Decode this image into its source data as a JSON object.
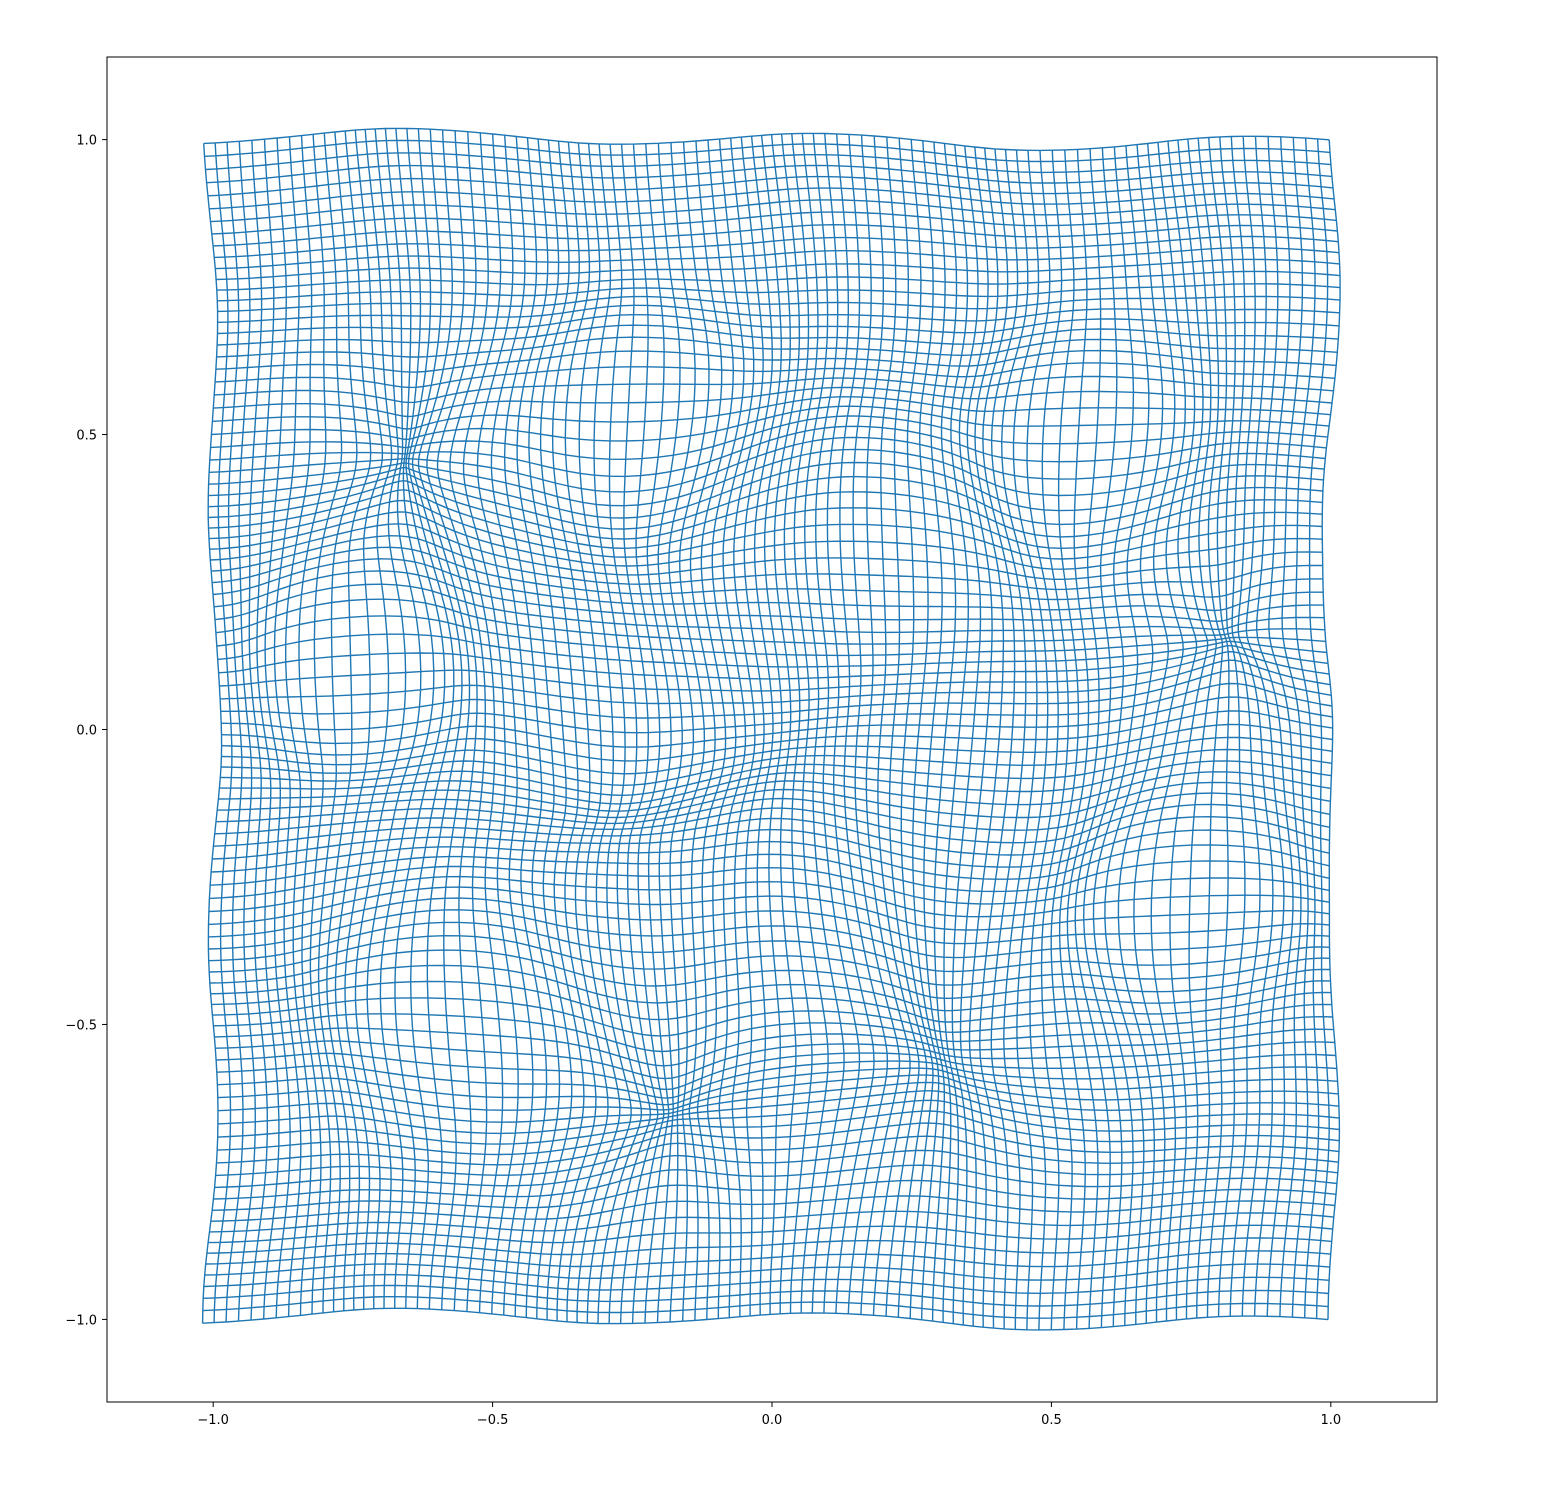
{
  "chart_data": {
    "type": "line",
    "title": "",
    "xlabel": "",
    "ylabel": "",
    "xlim": [
      -1.19,
      1.19
    ],
    "ylim": [
      -1.14,
      1.14
    ],
    "grid": false,
    "line_color": "#1f77b4",
    "mesh": {
      "description_free": true,
      "grid_lines_per_direction": 100,
      "domain": [
        -1.0,
        1.0
      ]
    },
    "xticks": [
      {
        "value": -1.0,
        "label": "−1.0"
      },
      {
        "value": -0.5,
        "label": "−0.5"
      },
      {
        "value": 0.0,
        "label": "0.0"
      },
      {
        "value": 0.5,
        "label": "0.5"
      },
      {
        "value": 1.0,
        "label": "1.0"
      }
    ],
    "yticks": [
      {
        "value": 1.0,
        "label": "1.0"
      },
      {
        "value": 0.5,
        "label": "0.5"
      },
      {
        "value": 0.0,
        "label": "0.0"
      },
      {
        "value": -0.5,
        "label": "−0.5"
      },
      {
        "value": -1.0,
        "label": "−1.0"
      }
    ]
  }
}
